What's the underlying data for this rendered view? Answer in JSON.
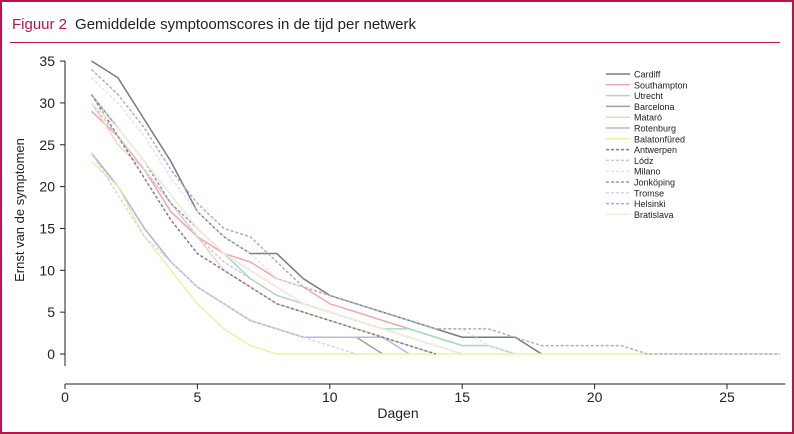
{
  "header": {
    "figure_label": "Figuur 2",
    "title": "Gemiddelde symptoomscores in de tijd per netwerk"
  },
  "chart_data": {
    "type": "line",
    "title": "Gemiddelde symptoomscores in de tijd per netwerk",
    "xlabel": "Dagen",
    "ylabel": "Ernst van de symptomen",
    "xlim": [
      0,
      27
    ],
    "ylim": [
      0,
      35
    ],
    "xticks": [
      0,
      5,
      10,
      15,
      20,
      25
    ],
    "yticks": [
      0,
      5,
      10,
      15,
      20,
      25,
      30,
      35
    ],
    "legend_position": "top-right",
    "grid": false,
    "x_start": 1,
    "series": [
      {
        "name": "Cardiff",
        "color": "#7a7a7a",
        "dash": false,
        "values": [
          35,
          33,
          28,
          23,
          17,
          14,
          12,
          12,
          9,
          7,
          6,
          5,
          4,
          3,
          2,
          2,
          2,
          0
        ]
      },
      {
        "name": "Southampton",
        "color": "#f0a8b0",
        "dash": false,
        "values": [
          29,
          26,
          22,
          17,
          14,
          12,
          11,
          9,
          8,
          6,
          5,
          4,
          3,
          2,
          1,
          1,
          0
        ]
      },
      {
        "name": "Utrecht",
        "color": "#a8dcc0",
        "dash": false,
        "values": [
          31,
          27,
          23,
          19,
          15,
          12,
          9,
          7,
          6,
          5,
          4,
          3,
          3,
          2,
          1,
          1,
          0
        ]
      },
      {
        "name": "Barcelona",
        "color": "#a0a0a0",
        "dash": false,
        "values": [
          24,
          20,
          15,
          11,
          8,
          6,
          4,
          3,
          2,
          2,
          2,
          0
        ]
      },
      {
        "name": "Mataró",
        "color": "#f3d6bc",
        "dash": false,
        "values": [
          30,
          25,
          22,
          18,
          14,
          10,
          8,
          6,
          5,
          4,
          3,
          2,
          1,
          0
        ]
      },
      {
        "name": "Rotenburg",
        "color": "#b8b8dc",
        "dash": false,
        "values": [
          24,
          20,
          15,
          11,
          8,
          6,
          4,
          3,
          2,
          2,
          2,
          2,
          0
        ]
      },
      {
        "name": "Balatonfüred",
        "color": "#eef0a8",
        "dash": false,
        "values": [
          23,
          20,
          14,
          10,
          6,
          3,
          1,
          0,
          0,
          0,
          0,
          0,
          0,
          0,
          0,
          0,
          0,
          0,
          0,
          0,
          0,
          0,
          0,
          0,
          0,
          0,
          0
        ]
      },
      {
        "name": "Antwerpen",
        "color": "#7e7e90",
        "dash": true,
        "values": [
          31,
          26,
          21,
          16,
          12,
          10,
          8,
          6,
          5,
          4,
          3,
          2,
          1,
          0
        ]
      },
      {
        "name": "Lódz",
        "color": "#c8c8d8",
        "dash": true,
        "values": [
          30,
          26,
          22,
          18,
          14,
          11,
          9,
          7,
          6,
          5,
          4,
          3,
          2,
          1,
          0
        ]
      },
      {
        "name": "Milano",
        "color": "#d8e8ec",
        "dash": true,
        "values": [
          33,
          30,
          26,
          21,
          17,
          14,
          12,
          9,
          8,
          7,
          6,
          5,
          4,
          3,
          3,
          1,
          0
        ]
      },
      {
        "name": "Jonköping",
        "color": "#9a9ab0",
        "dash": true,
        "values": [
          31,
          27,
          23,
          18,
          15,
          12,
          10,
          8,
          6,
          5,
          4,
          3,
          2,
          1,
          0
        ]
      },
      {
        "name": "Tromse",
        "color": "#d0d8ec",
        "dash": true,
        "values": [
          24,
          19,
          14,
          11,
          8,
          6,
          4,
          3,
          2,
          1,
          0
        ]
      },
      {
        "name": "Helsinki",
        "color": "#a8aed0",
        "dash": true,
        "values": [
          34,
          31,
          27,
          22,
          18,
          15,
          14,
          11,
          8,
          7,
          6,
          5,
          4,
          3,
          3,
          3,
          2,
          1,
          1,
          1,
          1,
          0,
          0,
          0,
          0,
          0,
          0
        ]
      },
      {
        "name": "Bratislava",
        "color": "#f4ecd8",
        "dash": false,
        "values": [
          30,
          27,
          23,
          19,
          15,
          12,
          10,
          8,
          6,
          5,
          4,
          3,
          2,
          1,
          0
        ]
      }
    ]
  }
}
